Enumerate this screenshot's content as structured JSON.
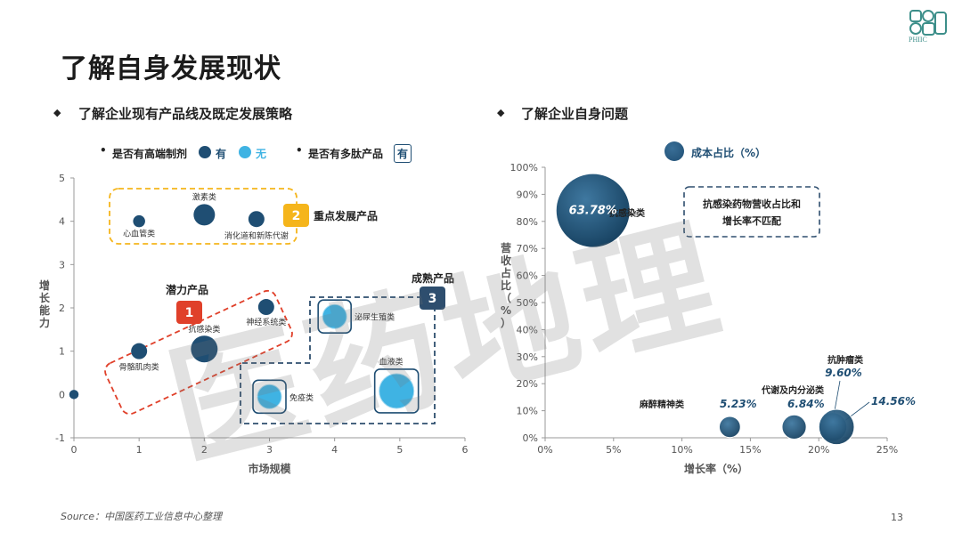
{
  "page": {
    "title": "了解自身发展现状",
    "section_left": "了解企业现有产品线及既定发展策略",
    "section_right": "了解企业自身问题",
    "source": "Source：中国医药工业信息中心整理",
    "page_number": "13",
    "logo_text": "PHIIC",
    "watermark": "医药地理"
  },
  "legend_left": {
    "bullet1": "是否有高端制剂",
    "yes": "有",
    "no": "无",
    "bullet2": "是否有多肽产品",
    "peptide_box": "有",
    "colors": {
      "yes": "#1f4e73",
      "no": "#3fb3e3"
    }
  },
  "legend_right": {
    "label": "成本占比（%）",
    "color": "#1f4e73"
  },
  "chart_data": [
    {
      "type": "scatter",
      "title": "",
      "xlabel": "市场规模",
      "ylabel": "增长能力",
      "xlim": [
        0,
        6
      ],
      "ylim": [
        -1,
        5
      ],
      "xticks": [
        "0",
        "1",
        "2",
        "3",
        "4",
        "5",
        "6"
      ],
      "yticks": [
        "-1",
        "0",
        "1",
        "2",
        "3",
        "4",
        "5"
      ],
      "points": [
        {
          "label": "",
          "x": 0,
          "y": 0,
          "size": 0.3,
          "high_end": true,
          "peptide": false
        },
        {
          "label": "心血管类",
          "x": 1,
          "y": 4,
          "size": 0.5,
          "high_end": true,
          "peptide": false
        },
        {
          "label": "激素类",
          "x": 2,
          "y": 4.15,
          "size": 1.2,
          "high_end": true,
          "peptide": false
        },
        {
          "label": "消化道和新陈代谢",
          "x": 2.8,
          "y": 4.05,
          "size": 0.8,
          "high_end": true,
          "peptide": false
        },
        {
          "label": "骨骼肌肉类",
          "x": 1,
          "y": 1,
          "size": 0.8,
          "high_end": true,
          "peptide": false
        },
        {
          "label": "抗感染类",
          "x": 2,
          "y": 1.05,
          "size": 1.6,
          "high_end": true,
          "peptide": false
        },
        {
          "label": "神经系统类",
          "x": 2.95,
          "y": 2.02,
          "size": 0.8,
          "high_end": true,
          "peptide": false
        },
        {
          "label": "泌尿生殖类",
          "x": 4,
          "y": 1.8,
          "size": 1.4,
          "high_end": false,
          "peptide": true
        },
        {
          "label": "免疫类",
          "x": 3,
          "y": -0.05,
          "size": 1.4,
          "high_end": false,
          "peptide": true
        },
        {
          "label": "血液类",
          "x": 4.95,
          "y": 0.08,
          "size": 2.2,
          "high_end": false,
          "peptide": true
        }
      ],
      "groups": [
        {
          "num": "1",
          "label": "潜力产品",
          "color": "#e0402a"
        },
        {
          "num": "2",
          "label": "重点发展产品",
          "color": "#f5b51b"
        },
        {
          "num": "3",
          "label": "成熟产品",
          "color": "#2e4e6e"
        }
      ]
    },
    {
      "type": "scatter",
      "title": "",
      "xlabel": "增长率（%）",
      "ylabel": "营收占比（%）",
      "xlim": [
        0,
        25
      ],
      "ylim": [
        0,
        100
      ],
      "xticks": [
        "0%",
        "5%",
        "10%",
        "15%",
        "20%",
        "25%"
      ],
      "yticks": [
        "0%",
        "10%",
        "20%",
        "30%",
        "40%",
        "50%",
        "60%",
        "70%",
        "80%",
        "90%",
        "100%"
      ],
      "points": [
        {
          "label": "抗感染类",
          "x": 3.5,
          "y": 84,
          "cost_share": "63.78%"
        },
        {
          "label": "麻醉精神类",
          "x": 13.5,
          "y": 4,
          "cost_share": "5.23%"
        },
        {
          "label": "代谢及内分泌类",
          "x": 18.2,
          "y": 4,
          "cost_share": "6.84%"
        },
        {
          "label": "抗肿瘤类",
          "x": 21,
          "y": 4,
          "cost_share": "9.60%"
        },
        {
          "label": "",
          "x": 21.3,
          "y": 4,
          "cost_share": "14.56%"
        }
      ],
      "annotation": "抗感染药物营收占比和增长率不匹配"
    }
  ]
}
